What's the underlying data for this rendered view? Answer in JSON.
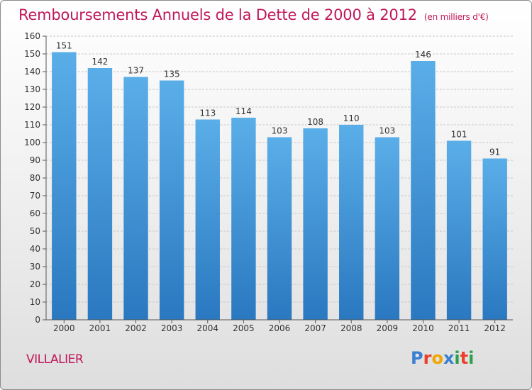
{
  "header": {
    "title": "Remboursements Annuels de la Dette de 2000 à 2012",
    "unit": "(en milliers d'€)"
  },
  "footer": {
    "town": "VILLALIER",
    "logo": "Proxiti",
    "logo_colors": [
      "#3a7fd0",
      "#e8402a",
      "#f0a500",
      "#3a7fd0",
      "#2aa04a",
      "#e8402a",
      "#2aa04a"
    ]
  },
  "colors": {
    "bar_top": "#5aaee8",
    "bar_bottom": "#2a78c0",
    "title": "#c0185a",
    "grid": "#c9c9c9"
  },
  "chart_data": {
    "type": "bar",
    "title": "Remboursements Annuels de la Dette de 2000 à 2012",
    "subtitle": "(en milliers d'€)",
    "categories": [
      "2000",
      "2001",
      "2002",
      "2003",
      "2004",
      "2005",
      "2006",
      "2007",
      "2008",
      "2009",
      "2010",
      "2011",
      "2012"
    ],
    "values": [
      151,
      142,
      137,
      135,
      113,
      114,
      103,
      108,
      110,
      103,
      146,
      101,
      91
    ],
    "ylim": [
      0,
      160
    ],
    "ytick_step": 10,
    "grid": true
  }
}
